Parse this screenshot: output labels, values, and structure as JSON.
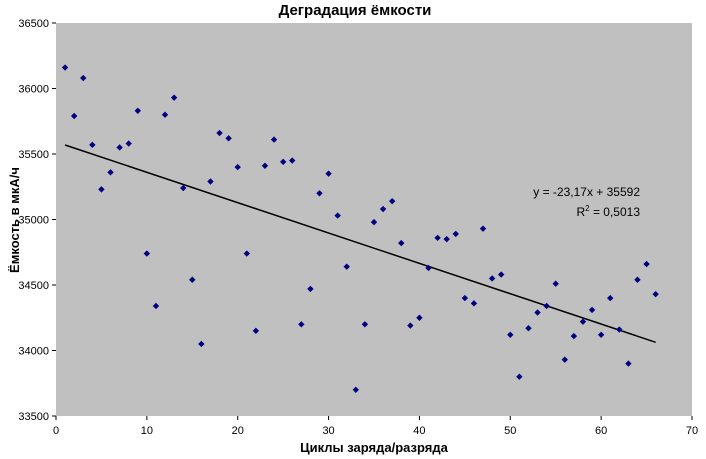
{
  "chart_data": {
    "type": "scatter",
    "title": "Деградация ёмкости",
    "xlabel": "Циклы заряда/разряда",
    "ylabel": "Ёмкость в мкА/ч",
    "xlim": [
      0,
      70
    ],
    "ylim": [
      33500,
      36500
    ],
    "x_ticks": [
      0,
      10,
      20,
      30,
      40,
      50,
      60,
      70
    ],
    "y_ticks": [
      33500,
      34000,
      34500,
      35000,
      35500,
      36000,
      36500
    ],
    "grid": false,
    "plot_background": "#c0c0c0",
    "marker_color": "#000080",
    "trendline": {
      "slope": -23.17,
      "intercept": 35592,
      "x_range": [
        1,
        66
      ],
      "color": "#000000",
      "equation": "y = -23,17x + 35592",
      "r2_prefix": "R",
      "r2_sup": "2",
      "r2_value": " = 0,5013"
    },
    "points": [
      [
        1,
        36160
      ],
      [
        2,
        35790
      ],
      [
        3,
        36080
      ],
      [
        4,
        35570
      ],
      [
        5,
        35230
      ],
      [
        6,
        35360
      ],
      [
        7,
        35550
      ],
      [
        8,
        35580
      ],
      [
        9,
        35830
      ],
      [
        10,
        34740
      ],
      [
        11,
        34340
      ],
      [
        12,
        35800
      ],
      [
        13,
        35930
      ],
      [
        14,
        35240
      ],
      [
        15,
        34540
      ],
      [
        16,
        34050
      ],
      [
        17,
        35290
      ],
      [
        18,
        35660
      ],
      [
        19,
        35620
      ],
      [
        20,
        35400
      ],
      [
        21,
        34740
      ],
      [
        22,
        34150
      ],
      [
        23,
        35410
      ],
      [
        24,
        35610
      ],
      [
        25,
        35440
      ],
      [
        26,
        35450
      ],
      [
        27,
        34200
      ],
      [
        28,
        34470
      ],
      [
        29,
        35200
      ],
      [
        30,
        35350
      ],
      [
        31,
        35030
      ],
      [
        32,
        34640
      ],
      [
        33,
        33700
      ],
      [
        34,
        34200
      ],
      [
        35,
        34980
      ],
      [
        36,
        35080
      ],
      [
        37,
        35140
      ],
      [
        38,
        34820
      ],
      [
        39,
        34190
      ],
      [
        40,
        34250
      ],
      [
        41,
        34630
      ],
      [
        42,
        34860
      ],
      [
        43,
        34850
      ],
      [
        44,
        34890
      ],
      [
        45,
        34400
      ],
      [
        46,
        34360
      ],
      [
        47,
        34930
      ],
      [
        48,
        34550
      ],
      [
        49,
        34580
      ],
      [
        50,
        34120
      ],
      [
        51,
        33800
      ],
      [
        52,
        34170
      ],
      [
        53,
        34290
      ],
      [
        54,
        34340
      ],
      [
        55,
        34510
      ],
      [
        56,
        33930
      ],
      [
        57,
        34110
      ],
      [
        58,
        34220
      ],
      [
        59,
        34310
      ],
      [
        60,
        34120
      ],
      [
        61,
        34400
      ],
      [
        62,
        34160
      ],
      [
        63,
        33900
      ],
      [
        64,
        34540
      ],
      [
        65,
        34660
      ],
      [
        66,
        34430
      ]
    ]
  }
}
